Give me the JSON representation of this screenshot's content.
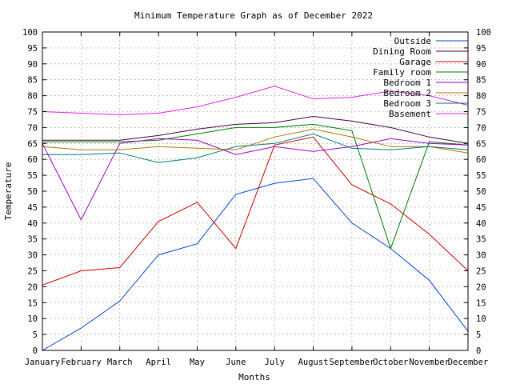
{
  "chart_data": {
    "type": "line",
    "title": "Minimum Temperature Graph as of December 2022",
    "xlabel": "Months",
    "ylabel": "Temperature",
    "categories": [
      "January",
      "February",
      "March",
      "April",
      "May",
      "June",
      "July",
      "August",
      "September",
      "October",
      "November",
      "December"
    ],
    "ylim": [
      0,
      100
    ],
    "y_ticks": [
      0,
      5,
      10,
      15,
      20,
      25,
      30,
      35,
      40,
      45,
      50,
      55,
      60,
      65,
      70,
      75,
      80,
      85,
      90,
      95,
      100
    ],
    "y_ticks_right": true,
    "grid": true,
    "legend_position": "top-right",
    "series": [
      {
        "name": "Outside",
        "color": "#0044cc",
        "values": [
          0,
          7,
          15.5,
          30,
          33.5,
          49,
          52.5,
          54,
          40,
          32,
          22,
          6
        ]
      },
      {
        "name": "Dining Room",
        "color": "#400040",
        "values": [
          66,
          66,
          66,
          67.5,
          69.5,
          71,
          71.5,
          73.5,
          72,
          70,
          67,
          65
        ]
      },
      {
        "name": "Garage",
        "color": "#cc0000",
        "values": [
          20.5,
          25,
          26,
          40.5,
          46.5,
          32,
          64.5,
          67,
          52,
          46,
          36.5,
          25
        ]
      },
      {
        "name": "Family room",
        "color": "#007700",
        "values": [
          65.5,
          65.5,
          65.5,
          66,
          68,
          70,
          70,
          71,
          69,
          32,
          65.5,
          64.5
        ]
      },
      {
        "name": "Bedroom 1",
        "color": "#9900bb",
        "values": [
          65,
          41,
          65,
          66.5,
          66,
          61.5,
          64,
          62.5,
          64,
          66.5,
          65,
          64.5
        ]
      },
      {
        "name": "Bedroom 2",
        "color": "#aa7700",
        "values": [
          64,
          63,
          63,
          64,
          63.5,
          63,
          67,
          69.5,
          67,
          64,
          64,
          62
        ]
      },
      {
        "name": "Bedroom 3",
        "color": "#007777",
        "values": [
          61.5,
          61.5,
          62,
          59,
          60.5,
          64,
          65,
          68,
          63.5,
          63,
          64,
          63
        ]
      },
      {
        "name": "Basement",
        "color": "#dd22dd",
        "values": [
          75,
          74.5,
          74,
          74.5,
          76.5,
          79.5,
          83,
          79,
          79.5,
          81.5,
          80,
          77
        ]
      }
    ]
  }
}
